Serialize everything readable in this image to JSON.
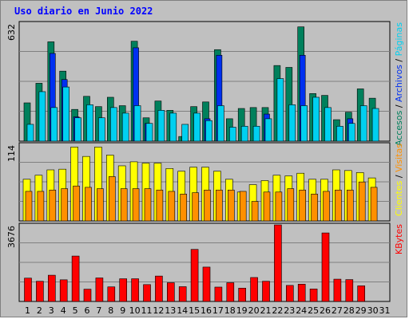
{
  "title": "Uso diario en Junio 2022",
  "colors": {
    "accesos": "#00805c",
    "archivos": "#0030f0",
    "paginas": "#00d0f0",
    "visitas": "#ffff00",
    "clientes": "#ff9000",
    "kbytes": "#ff0000",
    "weekend": "#008040",
    "weekday": "#000000"
  },
  "chart_data": [
    {
      "type": "bar",
      "panel": "top",
      "y_tick": "632",
      "ylim": [
        0,
        632
      ],
      "legend": [
        "Accesos",
        "Archivos",
        "Páginas"
      ],
      "legend_placement": "right-vertical",
      "categories": [
        "1",
        "2",
        "3",
        "4",
        "5",
        "6",
        "7",
        "8",
        "9",
        "10",
        "11",
        "12",
        "13",
        "14",
        "15",
        "16",
        "17",
        "18",
        "19",
        "20",
        "21",
        "22",
        "23",
        "24",
        "25",
        "26",
        "27",
        "28",
        "29",
        "30",
        "31"
      ],
      "series": [
        {
          "name": "Accesos",
          "values": [
            205,
            310,
            532,
            375,
            170,
            240,
            185,
            235,
            190,
            535,
            125,
            215,
            165,
            25,
            185,
            210,
            490,
            120,
            175,
            180,
            180,
            405,
            395,
            612,
            255,
            245,
            115,
            155,
            280,
            230,
            0
          ]
        },
        {
          "name": "Archivos",
          "values": [
            0,
            0,
            470,
            330,
            130,
            0,
            0,
            0,
            0,
            500,
            95,
            0,
            0,
            0,
            0,
            120,
            460,
            0,
            0,
            0,
            145,
            0,
            0,
            460,
            0,
            0,
            0,
            120,
            0,
            0,
            0
          ]
        },
        {
          "name": "Páginas",
          "values": [
            90,
            265,
            180,
            290,
            125,
            195,
            125,
            180,
            150,
            190,
            95,
            165,
            150,
            90,
            150,
            110,
            190,
            75,
            80,
            80,
            120,
            335,
            195,
            190,
            235,
            180,
            80,
            95,
            190,
            175,
            0
          ]
        }
      ]
    },
    {
      "type": "bar",
      "panel": "middle",
      "y_tick": "114",
      "ylim": [
        0,
        114
      ],
      "legend": [
        "Clientes",
        "Visitas"
      ],
      "legend_placement": "right-vertical",
      "categories": [
        "1",
        "2",
        "3",
        "4",
        "5",
        "6",
        "7",
        "8",
        "9",
        "10",
        "11",
        "12",
        "13",
        "14",
        "15",
        "16",
        "17",
        "18",
        "19",
        "20",
        "21",
        "22",
        "23",
        "24",
        "25",
        "26",
        "27",
        "28",
        "29",
        "30",
        "31"
      ],
      "series": [
        {
          "name": "Visitas",
          "values": [
            62,
            68,
            76,
            77,
            110,
            96,
            110,
            98,
            82,
            88,
            86,
            86,
            78,
            74,
            80,
            80,
            74,
            62,
            43,
            54,
            60,
            68,
            67,
            71,
            62,
            62,
            76,
            75,
            72,
            64,
            0
          ]
        },
        {
          "name": "Clientes",
          "values": [
            44,
            44,
            46,
            48,
            52,
            50,
            48,
            66,
            48,
            48,
            48,
            46,
            44,
            40,
            42,
            46,
            46,
            46,
            44,
            29,
            43,
            43,
            48,
            46,
            40,
            44,
            46,
            46,
            58,
            50,
            0
          ]
        }
      ]
    },
    {
      "type": "bar",
      "panel": "bottom",
      "y_tick": "3676",
      "ylim": [
        0,
        3676
      ],
      "legend": [
        "KBytes"
      ],
      "legend_placement": "right-vertical",
      "categories": [
        "1",
        "2",
        "3",
        "4",
        "5",
        "6",
        "7",
        "8",
        "9",
        "10",
        "11",
        "12",
        "13",
        "14",
        "15",
        "16",
        "17",
        "18",
        "19",
        "20",
        "21",
        "22",
        "23",
        "24",
        "25",
        "26",
        "27",
        "28",
        "29",
        "30",
        "31"
      ],
      "series": [
        {
          "name": "KBytes",
          "values": [
            1120,
            970,
            1260,
            1040,
            2180,
            590,
            1130,
            700,
            1090,
            1090,
            810,
            1220,
            900,
            710,
            2500,
            1650,
            690,
            900,
            640,
            1150,
            970,
            3676,
            770,
            830,
            600,
            3290,
            1070,
            1050,
            750,
            0,
            0
          ]
        }
      ]
    }
  ],
  "weekend_days": [
    "4",
    "5",
    "11",
    "12",
    "18",
    "19",
    "25",
    "26"
  ]
}
